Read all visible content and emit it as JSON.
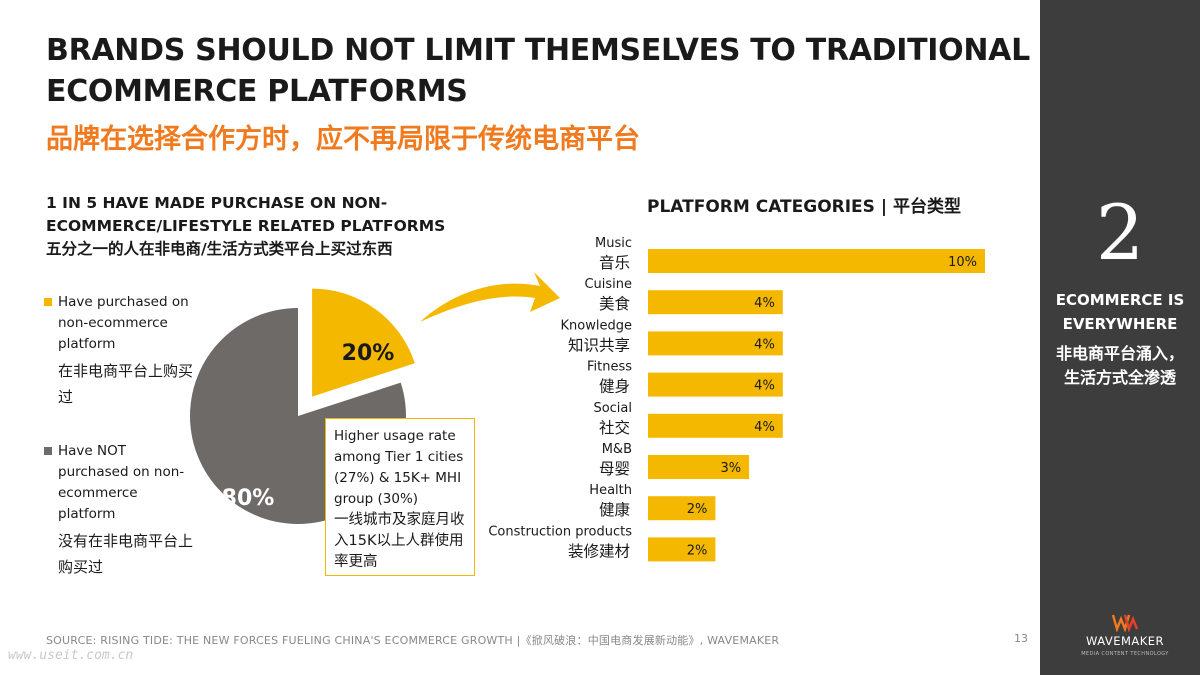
{
  "title": {
    "en": "BRANDS SHOULD NOT LIMIT THEMSELVES TO TRADITIONAL ECOMMERCE PLATFORMS",
    "zh": "品牌在选择合作方时，应不再局限于传统电商平台"
  },
  "left_section": {
    "heading_en": "1 IN 5 HAVE MADE PURCHASE ON NON-ECOMMERCE/LIFESTYLE RELATED PLATFORMS",
    "heading_zh": "五分之一的人在非电商/生活方式类平台上买过东西",
    "legend": [
      {
        "en": "Have purchased on non-ecommerce platform",
        "zh": "在非电商平台上购买过",
        "color": "#f5b800"
      },
      {
        "en": "Have NOT purchased on non-ecommerce platform",
        "zh": "没有在非电商平台上购买过",
        "color": "#6e6a68"
      }
    ],
    "callout": {
      "en": "Higher usage rate among Tier 1 cities (27%) & 15K+ MHI group (30%)",
      "zh": "一线城市及家庭月收入15K以上人群使用率更高"
    }
  },
  "right_section": {
    "heading": "PLATFORM CATEGORIES | 平台类型"
  },
  "sidebar": {
    "number": "2",
    "en": "ECOMMERCE IS EVERYWHERE",
    "zh": "非电商平台涌入，生活方式全渗透",
    "brand": "WAVEMAKER",
    "brand_sub": "MEDIA CONTENT TECHNOLOGY",
    "bg_color": "#3d3d3d"
  },
  "footer": {
    "source": "SOURCE: RISING TIDE: THE NEW FORCES FUELING CHINA'S ECOMMERCE GROWTH |《掀风破浪：中国电商发展新动能》, WAVEMAKER",
    "page": "13",
    "watermark": "www.useit.com.cn"
  },
  "colors": {
    "accent": "#f5b800",
    "grey": "#6e6a68",
    "orange_title": "#f07a1e"
  },
  "chart_data": [
    {
      "type": "pie",
      "labels": [
        "Have purchased on non-ecommerce platform",
        "Have NOT purchased on non-ecommerce platform"
      ],
      "values": [
        20,
        80
      ],
      "data_labels": [
        "20%",
        "80%"
      ],
      "colors": [
        "#f5b800",
        "#6e6a68"
      ],
      "exploded": [
        true,
        false
      ]
    },
    {
      "type": "bar",
      "orientation": "horizontal",
      "categories": [
        {
          "en": "Music",
          "zh": "音乐"
        },
        {
          "en": "Cuisine",
          "zh": "美食"
        },
        {
          "en": "Knowledge",
          "zh": "知识共享"
        },
        {
          "en": "Fitness",
          "zh": "健身"
        },
        {
          "en": "Social",
          "zh": "社交"
        },
        {
          "en": "M&B",
          "zh": "母婴"
        },
        {
          "en": "Health",
          "zh": "健康"
        },
        {
          "en": "Construction products",
          "zh": "装修建材"
        }
      ],
      "values": [
        10,
        4,
        4,
        4,
        4,
        3,
        2,
        2
      ],
      "data_labels": [
        "10%",
        "4%",
        "4%",
        "4%",
        "4%",
        "3%",
        "2%",
        "2%"
      ],
      "color": "#f5b800",
      "xlim": [
        0,
        10
      ]
    }
  ]
}
